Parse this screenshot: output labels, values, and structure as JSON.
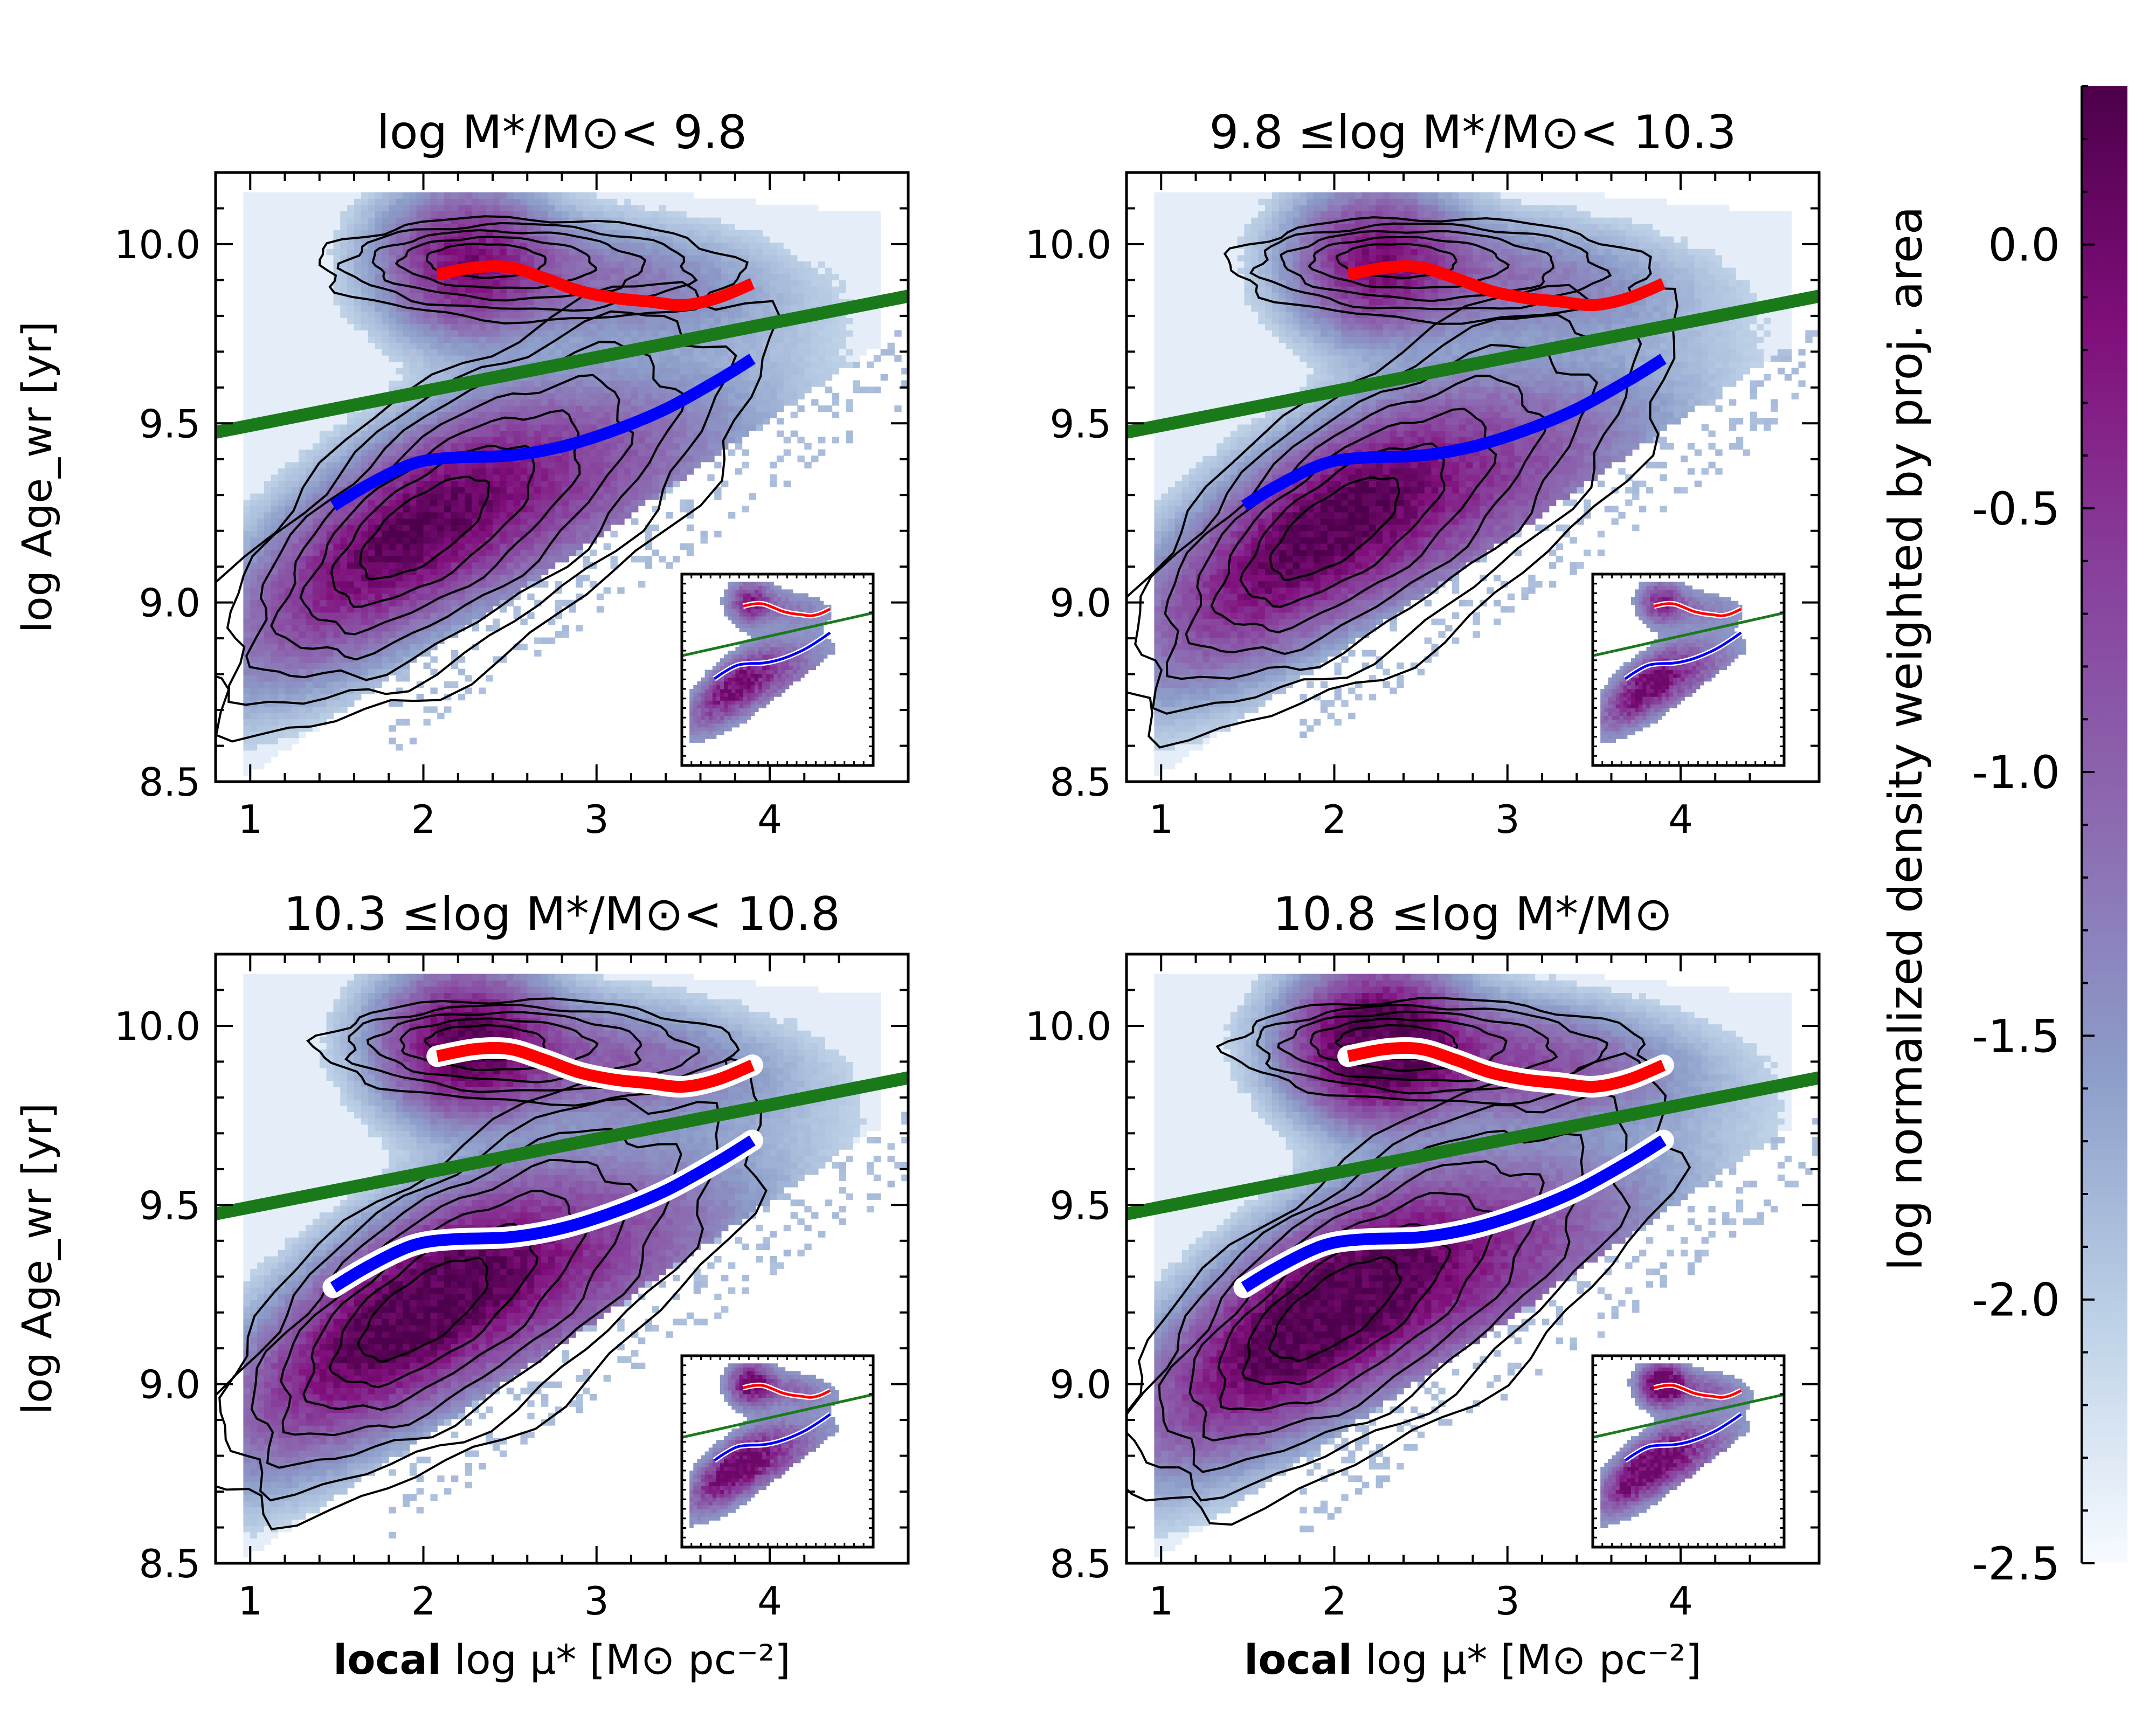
{
  "chart_data": {
    "type": "heatmap",
    "x_range": [
      0.8,
      4.8
    ],
    "y_range": [
      8.5,
      10.2
    ],
    "x_ticks": [
      "1",
      "2",
      "3",
      "4"
    ],
    "y_ticks": [
      "8.5",
      "9.0",
      "9.5",
      "10.0"
    ],
    "xlabel": {
      "bold": "local",
      "rest": " log μ* [M⊙ pc⁻²]"
    },
    "ylabel": "log Age_wr [yr]",
    "colorbar": {
      "label": "log normalized density weighted by proj. area",
      "range": [
        -2.5,
        0.3
      ],
      "ticks": [
        "0.0",
        "-0.5",
        "-1.0",
        "-1.5",
        "-2.0",
        "-2.5"
      ],
      "colors": [
        "#f7fbff",
        "#bcd0e6",
        "#8c9dc9",
        "#8c6bb1",
        "#88419d",
        "#810f7c",
        "#4d004b"
      ]
    },
    "divider_line": {
      "name": "green separator",
      "color": "#1a7a1a",
      "x": [
        0.8,
        4.8
      ],
      "y": [
        9.475,
        9.855
      ]
    },
    "red_curve": {
      "name": "old population median",
      "color": "#ff0000",
      "x": [
        2.08,
        2.3,
        2.5,
        2.7,
        2.9,
        3.1,
        3.3,
        3.5,
        3.7,
        3.9
      ],
      "y": [
        9.915,
        9.935,
        9.935,
        9.905,
        9.87,
        9.85,
        9.84,
        9.83,
        9.85,
        9.89
      ]
    },
    "blue_curve": {
      "name": "young population median",
      "color": "#0000ff",
      "x": [
        1.48,
        1.65,
        1.85,
        2.0,
        2.2,
        2.5,
        2.8,
        3.1,
        3.4,
        3.7,
        3.9
      ],
      "y": [
        9.27,
        9.32,
        9.37,
        9.395,
        9.405,
        9.41,
        9.435,
        9.48,
        9.54,
        9.62,
        9.68
      ]
    },
    "panels": [
      {
        "id": "p1",
        "title": "log M*/M⊙< 9.8",
        "density_scale": 0.78,
        "white_outline": false,
        "show_xlabel": false
      },
      {
        "id": "p2",
        "title": "9.8 ≤log M*/M⊙< 10.3",
        "density_scale": 0.85,
        "white_outline": false,
        "show_xlabel": false
      },
      {
        "id": "p3",
        "title": "10.3 ≤log M*/M⊙< 10.8",
        "density_scale": 0.95,
        "white_outline": true,
        "show_xlabel": true
      },
      {
        "id": "p4",
        "title": "10.8 ≤log M*/M⊙",
        "density_scale": 1.0,
        "white_outline": true,
        "show_xlabel": true
      }
    ]
  }
}
